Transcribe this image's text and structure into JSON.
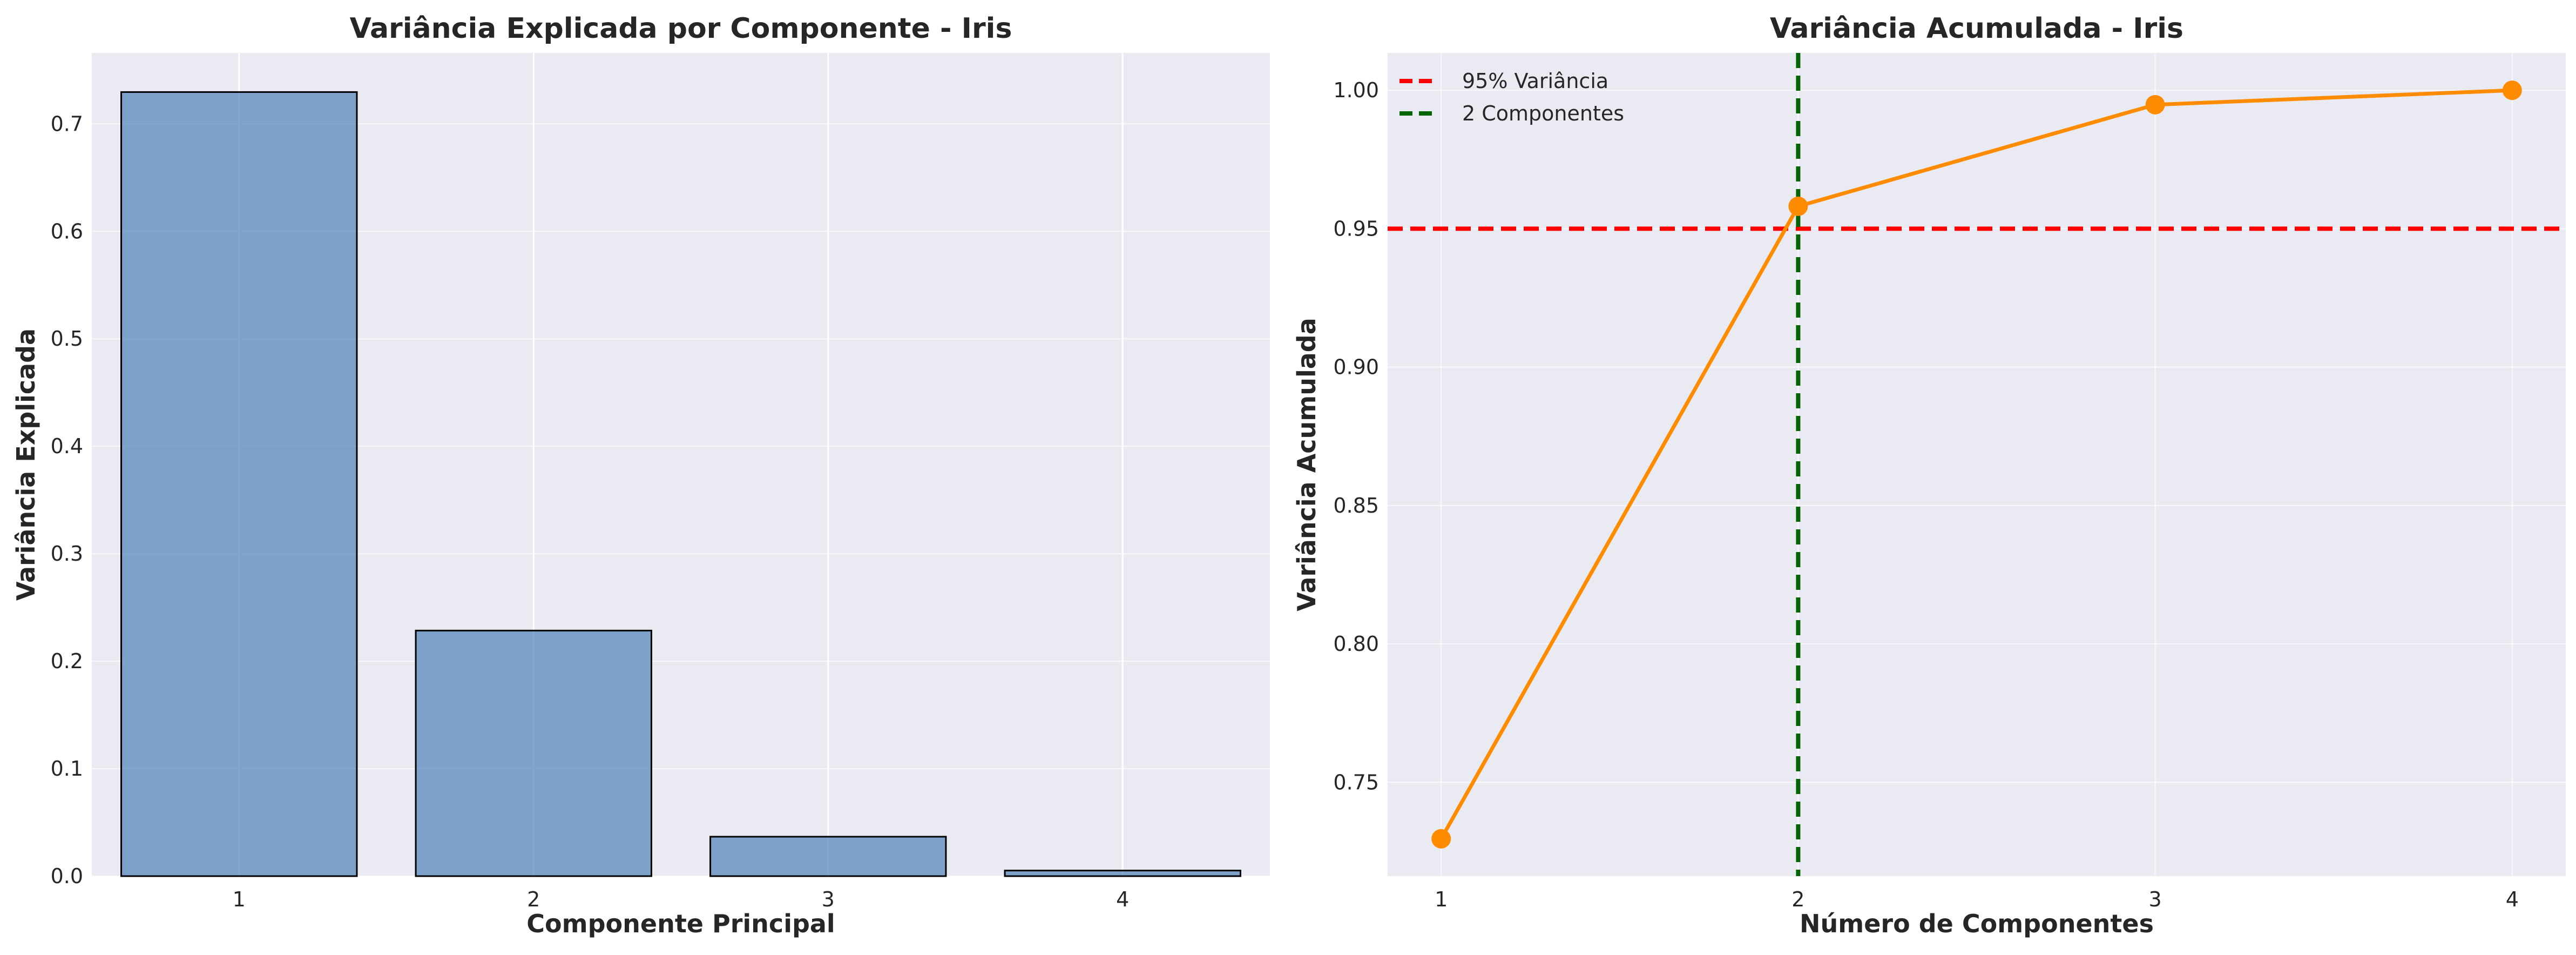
{
  "chart_data": [
    {
      "type": "bar",
      "title": "Variância Explicada por Componente - Iris",
      "xlabel": "Componente Principal",
      "ylabel": "Variância Explicada",
      "categories": [
        "1",
        "2",
        "3",
        "4"
      ],
      "values": [
        0.7296,
        0.2285,
        0.0367,
        0.0052
      ],
      "ylim": [
        0,
        0.766
      ],
      "yticks": [
        "0.0",
        "0.1",
        "0.2",
        "0.3",
        "0.4",
        "0.5",
        "0.6",
        "0.7"
      ],
      "bar_color": "#4f81b8",
      "grid": true
    },
    {
      "type": "line",
      "title": "Variância Acumulada - Iris",
      "xlabel": "Número de Componentes",
      "ylabel": "Variância Acumulada",
      "x": [
        1,
        2,
        3,
        4
      ],
      "xticks": [
        "1",
        "2",
        "3",
        "4"
      ],
      "y": [
        0.7296,
        0.9581,
        0.9948,
        1.0
      ],
      "xlim": [
        0.85,
        4.15
      ],
      "ylim": [
        0.7161,
        1.0135
      ],
      "yticks": [
        "0.75",
        "0.80",
        "0.85",
        "0.90",
        "0.95",
        "1.00"
      ],
      "line_color": "#ff8c00",
      "hline": {
        "y": 0.95,
        "color": "#ff0000",
        "label": "95% Variância"
      },
      "vline": {
        "x": 2,
        "color": "#006400",
        "label": "2 Componentes"
      },
      "legend_position": "top-left",
      "grid": true
    }
  ]
}
